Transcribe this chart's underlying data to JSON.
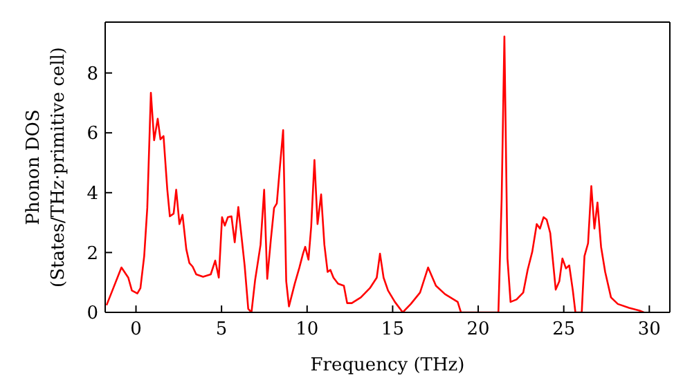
{
  "chart_data": {
    "type": "line",
    "xlabel": "Frequency (THz)",
    "ylabel": "Phonon DOS\n(States/THz·primitive cell)",
    "xlim": [
      -1.8,
      31.2
    ],
    "xticks": [
      0,
      5,
      10,
      15,
      20,
      25,
      30
    ],
    "ylim": [
      0,
      9.7
    ],
    "yticks": [
      0,
      2,
      4,
      6,
      8
    ],
    "grid": false,
    "legend": false,
    "marker": "none",
    "line_style": "solid",
    "series": [
      {
        "color": "#ff0000",
        "x": [
          -1.72,
          -1.38,
          -0.85,
          -0.45,
          -0.24,
          0.08,
          0.26,
          0.48,
          0.66,
          0.87,
          1.06,
          1.27,
          1.43,
          1.61,
          1.83,
          1.98,
          2.2,
          2.35,
          2.54,
          2.72,
          2.94,
          3.12,
          3.31,
          3.52,
          3.92,
          4.37,
          4.63,
          4.84,
          5.03,
          5.19,
          5.37,
          5.58,
          5.77,
          5.98,
          6.16,
          6.35,
          6.56,
          6.75,
          6.96,
          7.28,
          7.49,
          7.67,
          7.88,
          8.07,
          8.23,
          8.41,
          8.6,
          8.78,
          8.94,
          9.28,
          9.55,
          9.76,
          9.89,
          10.08,
          10.24,
          10.43,
          10.61,
          10.82,
          11.01,
          11.2,
          11.36,
          11.54,
          11.81,
          12.15,
          12.34,
          12.61,
          13.14,
          13.67,
          14.07,
          14.26,
          14.47,
          14.73,
          15.13,
          15.59,
          16.06,
          16.6,
          17.07,
          17.53,
          18.06,
          18.8,
          18.99,
          21.18,
          21.37,
          21.53,
          21.71,
          21.89,
          22.24,
          22.63,
          22.89,
          23.16,
          23.42,
          23.61,
          23.82,
          24.0,
          24.21,
          24.53,
          24.74,
          24.92,
          25.13,
          25.32,
          25.53,
          25.68,
          26.05,
          26.21,
          26.42,
          26.61,
          26.79,
          26.97,
          27.18,
          27.42,
          27.76,
          28.16,
          28.82,
          29.47,
          29.68
        ],
        "values": [
          0.24,
          0.73,
          1.5,
          1.16,
          0.73,
          0.63,
          0.81,
          1.88,
          3.49,
          7.34,
          5.75,
          6.47,
          5.78,
          5.89,
          4.1,
          3.21,
          3.3,
          4.1,
          2.95,
          3.26,
          2.11,
          1.65,
          1.53,
          1.27,
          1.19,
          1.27,
          1.73,
          1.16,
          3.18,
          2.9,
          3.18,
          3.21,
          2.34,
          3.52,
          2.57,
          1.57,
          0.12,
          0,
          1.07,
          2.26,
          4.1,
          1.12,
          2.42,
          3.49,
          3.64,
          4.86,
          6.09,
          1.04,
          0.2,
          0.96,
          1.5,
          1.96,
          2.19,
          1.76,
          2.87,
          5.09,
          2.95,
          3.94,
          2.26,
          1.35,
          1.42,
          1.16,
          0.96,
          0.89,
          0.31,
          0.31,
          0.5,
          0.81,
          1.16,
          1.96,
          1.16,
          0.73,
          0.35,
          0,
          0.28,
          0.66,
          1.5,
          0.89,
          0.61,
          0.35,
          0,
          0,
          3.79,
          9.22,
          1.8,
          0.35,
          0.43,
          0.66,
          1.42,
          2.03,
          2.95,
          2.8,
          3.18,
          3.1,
          2.65,
          0.76,
          1.04,
          1.8,
          1.47,
          1.57,
          0.73,
          0,
          0,
          1.88,
          2.31,
          4.22,
          2.8,
          3.67,
          2.19,
          1.35,
          0.5,
          0.28,
          0.15,
          0.05,
          0
        ]
      }
    ]
  }
}
